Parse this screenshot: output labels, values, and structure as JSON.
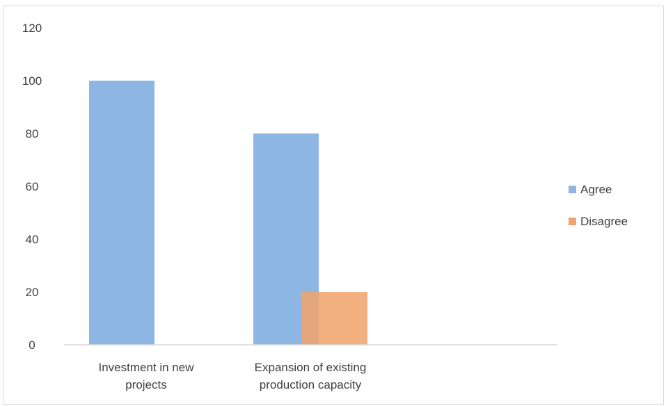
{
  "chart_data": {
    "type": "bar",
    "categories": [
      [
        "Investment in new",
        "projects"
      ],
      [
        "Expansion of existing",
        "production capacity"
      ],
      [
        ""
      ]
    ],
    "series": [
      {
        "name": "Agree",
        "values": [
          100,
          80,
          null
        ],
        "color": "#8db7e2"
      },
      {
        "name": "Disagree",
        "values": [
          null,
          20,
          null
        ],
        "color": "#f0a46d"
      }
    ],
    "y_ticks": [
      "0",
      "20",
      "40",
      "60",
      "80",
      "100",
      "120"
    ],
    "ylim": [
      0,
      120
    ],
    "grid": false,
    "legend": "right",
    "overlap": true
  }
}
